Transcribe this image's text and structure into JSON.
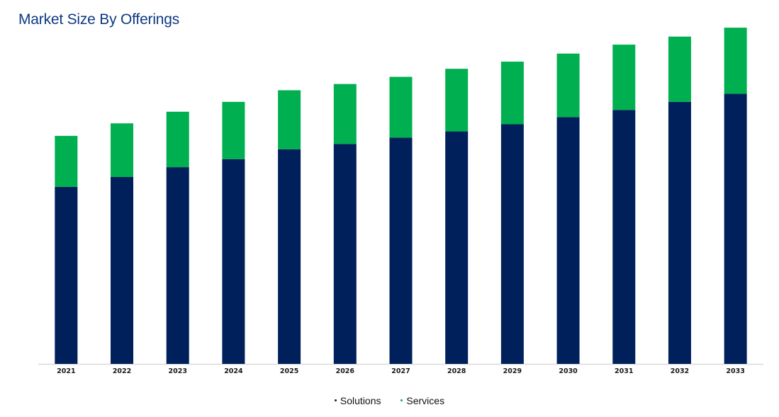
{
  "title": "Market Size By Offerings",
  "colors": {
    "solutions": "#00205b",
    "services": "#00b050",
    "title": "#0e3a83",
    "axis": "#d9d9d9"
  },
  "legend": {
    "solutions_label": "Solutions",
    "services_label": "Services"
  },
  "chart_data": {
    "type": "bar",
    "stacked": true,
    "categories": [
      "2021",
      "2022",
      "2023",
      "2024",
      "2025",
      "2026",
      "2027",
      "2028",
      "2029",
      "2030",
      "2031",
      "2032",
      "2033"
    ],
    "series": [
      {
        "name": "Solutions",
        "color": "#00205b",
        "values": [
          198,
          209,
          220,
          229,
          240,
          246,
          253,
          260,
          268,
          276,
          284,
          293,
          302
        ]
      },
      {
        "name": "Services",
        "color": "#00b050",
        "values": [
          57,
          60,
          62,
          64,
          66,
          67,
          68,
          70,
          70,
          71,
          73,
          73,
          74
        ]
      }
    ],
    "ylim": [
      0,
      380
    ],
    "grid": false,
    "y_axis_visible": false,
    "legend_position": "bottom"
  }
}
